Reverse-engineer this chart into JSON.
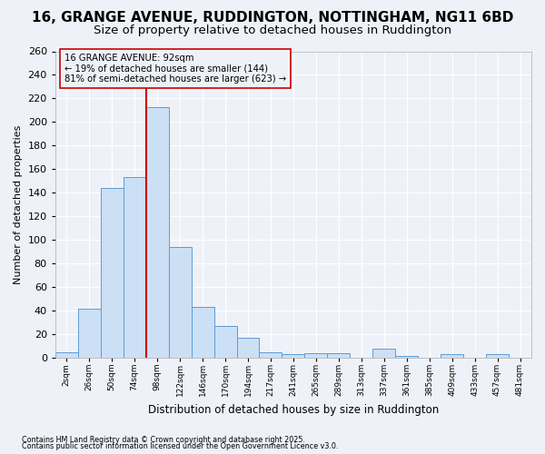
{
  "title1": "16, GRANGE AVENUE, RUDDINGTON, NOTTINGHAM, NG11 6BD",
  "title2": "Size of property relative to detached houses in Ruddington",
  "xlabel": "Distribution of detached houses by size in Ruddington",
  "ylabel": "Number of detached properties",
  "footnote1": "Contains HM Land Registry data © Crown copyright and database right 2025.",
  "footnote2": "Contains public sector information licensed under the Open Government Licence v3.0.",
  "bin_labels": [
    "2sqm",
    "26sqm",
    "50sqm",
    "74sqm",
    "98sqm",
    "122sqm",
    "146sqm",
    "170sqm",
    "194sqm",
    "217sqm",
    "241sqm",
    "265sqm",
    "289sqm",
    "313sqm",
    "337sqm",
    "361sqm",
    "385sqm",
    "409sqm",
    "433sqm",
    "457sqm",
    "481sqm"
  ],
  "bar_values": [
    5,
    42,
    144,
    153,
    213,
    94,
    43,
    27,
    17,
    5,
    3,
    4,
    4,
    0,
    8,
    2,
    0,
    3,
    0,
    3,
    0
  ],
  "bar_color": "#cce0f5",
  "bar_edge_color": "#5b9bd5",
  "vline_x": 3.5,
  "vline_color": "#cc0000",
  "annotation_text": "16 GRANGE AVENUE: 92sqm\n← 19% of detached houses are smaller (144)\n81% of semi-detached houses are larger (623) →",
  "ylim": [
    0,
    260
  ],
  "yticks": [
    0,
    20,
    40,
    60,
    80,
    100,
    120,
    140,
    160,
    180,
    200,
    220,
    240,
    260
  ],
  "bg_color": "#eef2f8",
  "grid_color": "#ffffff",
  "title1_fontsize": 11,
  "title2_fontsize": 9.5
}
